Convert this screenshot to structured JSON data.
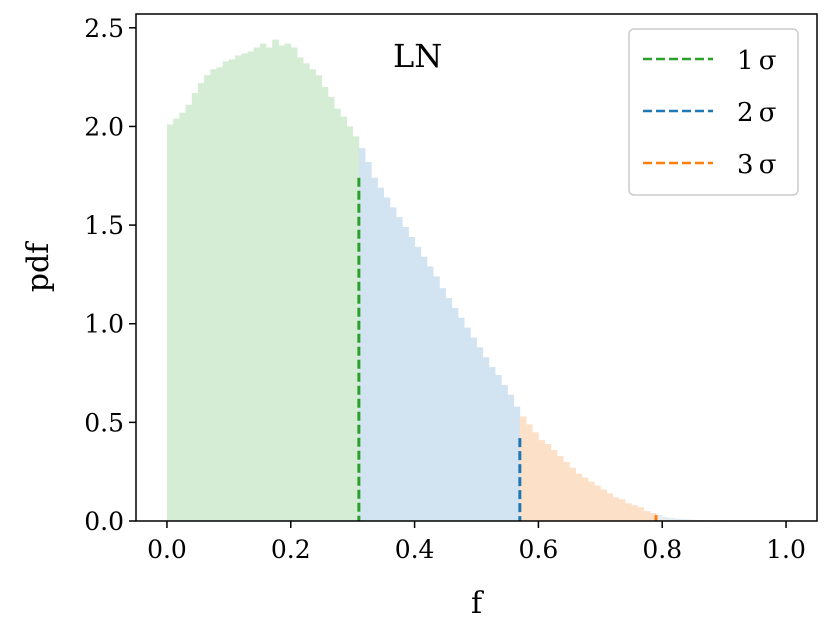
{
  "chart_data": {
    "type": "bar",
    "title": "",
    "annotation": "LN",
    "xlabel": "f",
    "ylabel": "pdf",
    "xlim": [
      -0.05,
      1.05
    ],
    "ylim": [
      0.0,
      2.57
    ],
    "xticks": [
      0.0,
      0.2,
      0.4,
      0.6,
      0.8,
      1.0
    ],
    "xtick_labels": [
      "0.0",
      "0.2",
      "0.4",
      "0.6",
      "0.8",
      "1.0"
    ],
    "yticks": [
      0.0,
      0.5,
      1.0,
      1.5,
      2.0,
      2.5
    ],
    "ytick_labels": [
      "0.0",
      "0.5",
      "1.0",
      "1.5",
      "2.0",
      "2.5"
    ],
    "grid": false,
    "legend_position": "top-right",
    "bin_width": 0.01,
    "bin_start": 0.0,
    "values": [
      2.01,
      2.04,
      2.07,
      2.11,
      2.17,
      2.22,
      2.26,
      2.29,
      2.3,
      2.33,
      2.34,
      2.36,
      2.37,
      2.38,
      2.4,
      2.42,
      2.4,
      2.44,
      2.41,
      2.42,
      2.4,
      2.35,
      2.32,
      2.29,
      2.26,
      2.2,
      2.15,
      2.09,
      2.05,
      2.0,
      1.95,
      1.89,
      1.82,
      1.74,
      1.69,
      1.64,
      1.59,
      1.54,
      1.49,
      1.44,
      1.39,
      1.34,
      1.29,
      1.24,
      1.18,
      1.13,
      1.08,
      1.03,
      0.98,
      0.93,
      0.88,
      0.83,
      0.78,
      0.74,
      0.69,
      0.64,
      0.58,
      0.53,
      0.49,
      0.45,
      0.41,
      0.39,
      0.36,
      0.33,
      0.3,
      0.27,
      0.24,
      0.22,
      0.2,
      0.18,
      0.16,
      0.14,
      0.12,
      0.11,
      0.09,
      0.08,
      0.07,
      0.05,
      0.04,
      0.03,
      0.02,
      0.015,
      0.012,
      0.01,
      0.008,
      0.006,
      0.005,
      0.004,
      0.003,
      0.003,
      0.002,
      0.002,
      0.001,
      0.001,
      0.001,
      0.001,
      0.0005,
      0.0005,
      0.0003,
      0.0002
    ],
    "regions": [
      {
        "from": 0.0,
        "to": 0.31,
        "color": "#d4edd4"
      },
      {
        "from": 0.31,
        "to": 0.57,
        "color": "#d2e3f1"
      },
      {
        "from": 0.57,
        "to": 0.79,
        "color": "#fde0c8"
      },
      {
        "from": 0.79,
        "to": 1.0,
        "color": "#e8eef2"
      }
    ],
    "thresholds": [
      {
        "name": "1σ",
        "label_num": "1",
        "label_sym": "σ",
        "x": 0.31,
        "height": 1.74,
        "color": "#2ca02c"
      },
      {
        "name": "2σ",
        "label_num": "2",
        "label_sym": "σ",
        "x": 0.57,
        "height": 0.42,
        "color": "#1f77b4"
      },
      {
        "name": "3σ",
        "label_num": "3",
        "label_sym": "σ",
        "x": 0.79,
        "height": 0.03,
        "color": "#ff7f0e"
      }
    ]
  }
}
